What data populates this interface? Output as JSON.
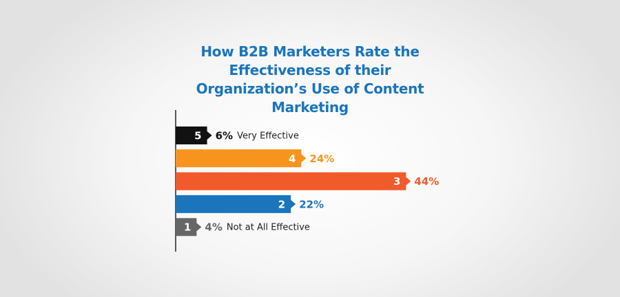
{
  "chart_data": {
    "type": "bar",
    "orientation": "horizontal",
    "title": "How B2B Marketers Rate the Effectiveness of their Organization’s Use of Content Marketing",
    "categories": [
      "5",
      "4",
      "3",
      "2",
      "1"
    ],
    "values": [
      6,
      24,
      44,
      22,
      4
    ],
    "value_labels": [
      "6%",
      "24%",
      "44%",
      "22%",
      "4%"
    ],
    "colors": [
      "#111111",
      "#f7941d",
      "#f15a2b",
      "#1a75bc",
      "#666666"
    ],
    "label_colors": [
      "#111111",
      "#f7941d",
      "#f15a2b",
      "#1a75bc",
      "#666666"
    ],
    "bar_notes": [
      "Very Effective",
      null,
      null,
      null,
      "Not at All Effective"
    ],
    "title_color": "#1a75bc"
  }
}
